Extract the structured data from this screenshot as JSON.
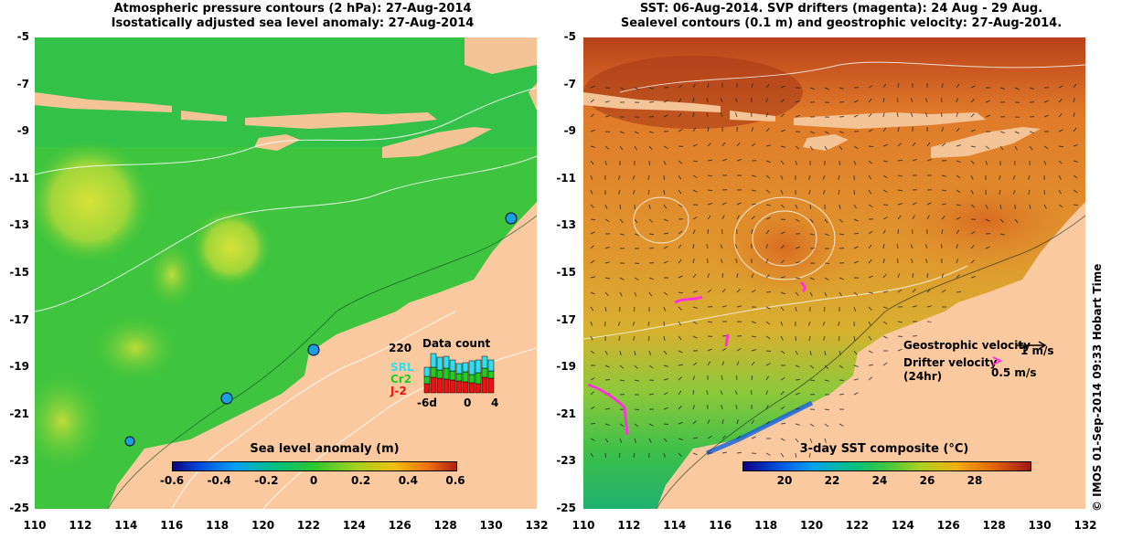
{
  "left_panel": {
    "title_line1": "Atmospheric pressure contours (2 hPa): 27-Aug-2014",
    "title_line2": "Isostatically adjusted sea level anomaly: 27-Aug-2014",
    "colorbar": {
      "title": "Sea level anomaly (m)",
      "ticks": [
        "-0.6",
        "-0.4",
        "-0.2",
        "0",
        "0.2",
        "0.4",
        "0.6"
      ]
    },
    "data_count": {
      "title": "Data count",
      "max_label": "220",
      "x_labels": [
        "-6d",
        "0",
        "4"
      ],
      "series": [
        {
          "name": "SRL",
          "color": "#33ddee"
        },
        {
          "name": "Cr2",
          "color": "#22cc22"
        },
        {
          "name": "J-2",
          "color": "#ee1111"
        }
      ]
    }
  },
  "right_panel": {
    "title_line1": "SST: 06-Aug-2014. SVP drifters (magenta): 24 Aug - 29 Aug.",
    "title_line2": "Sealevel contours (0.1 m) and geostrophic velocity: 27-Aug-2014.",
    "colorbar": {
      "title": "3-day SST composite (°C)",
      "ticks": [
        "20",
        "22",
        "24",
        "26",
        "28"
      ]
    },
    "legend": {
      "geo_label": "Geostrophic velocity",
      "geo_scale": "1 m/s",
      "drifter_label": "Drifter velocity",
      "drifter_sub": "(24hr)",
      "drifter_scale": "0.5 m/s"
    }
  },
  "axes": {
    "y_ticks": [
      "-5",
      "-7",
      "-9",
      "-11",
      "-13",
      "-15",
      "-17",
      "-19",
      "-21",
      "-23",
      "-25"
    ],
    "x_ticks": [
      "110",
      "112",
      "114",
      "116",
      "118",
      "120",
      "122",
      "124",
      "126",
      "128",
      "130",
      "132"
    ],
    "lon_range": [
      110,
      132
    ],
    "lat_range": [
      -25,
      -5
    ]
  },
  "credit": "© IMOS 01-Sep-2014 09:33 Hobart Time",
  "colors": {
    "land": "#fac9a0",
    "island": "#f5c496",
    "sla_ocean": "#3ec43e",
    "sst_warm": "#e08a2a",
    "sst_hot": "#b8401a",
    "drifter": "#ff33dd"
  }
}
